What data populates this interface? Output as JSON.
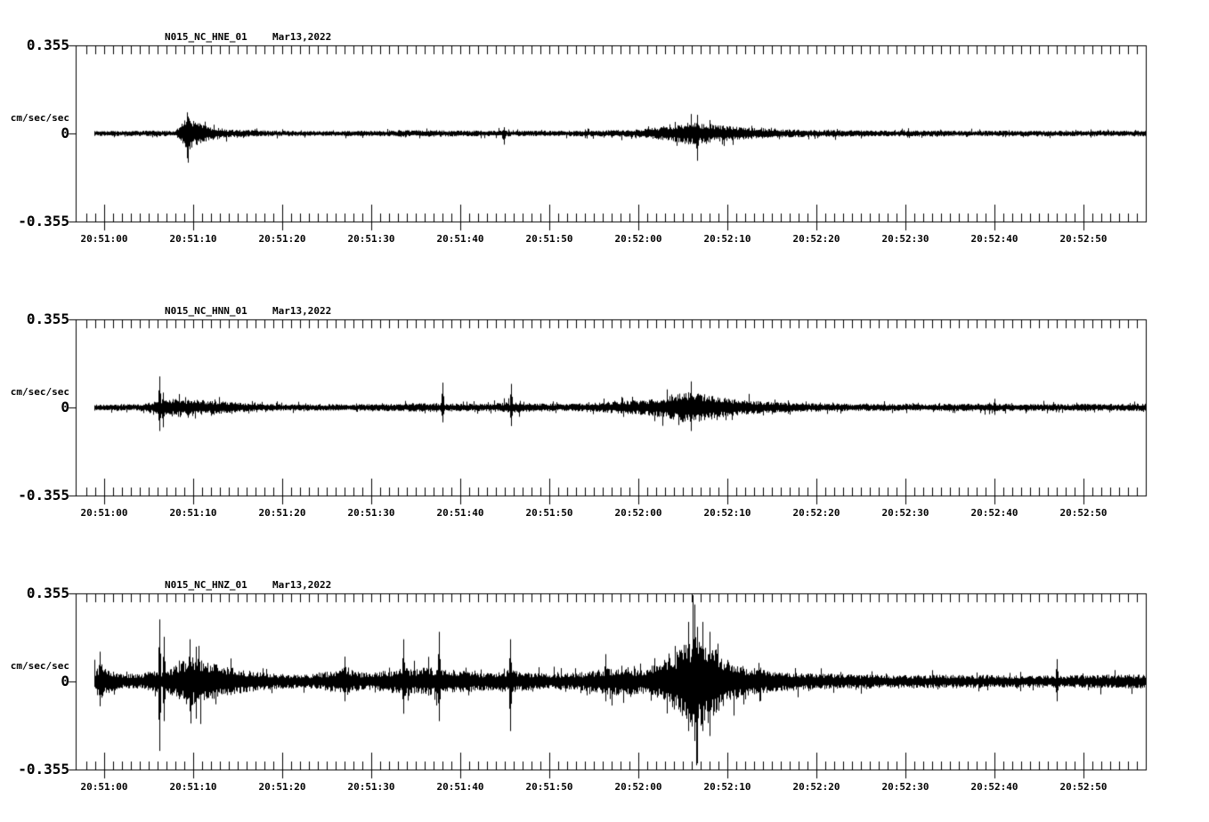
{
  "page": {
    "background": "#ffffff",
    "ink": "#000000"
  },
  "chart_data": [
    {
      "type": "line",
      "kind": "seismogram",
      "title": "N015_NC_HNE_01",
      "date": "Mar13,2022",
      "ylabel": "cm/sec/sec",
      "yticks": [
        "0.355",
        "0",
        "-0.355"
      ],
      "ylim": [
        -0.355,
        0.355
      ],
      "x_tick_labels": [
        "20:51:00",
        "20:51:10",
        "20:51:20",
        "20:51:30",
        "20:51:40",
        "20:51:50",
        "20:52:00",
        "20:52:10",
        "20:52:20",
        "20:52:30",
        "20:52:40",
        "20:52:50"
      ],
      "seconds_per_division": 10,
      "x_start_sec": -1.1,
      "x_end_sec": 117,
      "envelope": [
        [
          -1.1,
          0.01
        ],
        [
          0,
          0.01
        ],
        [
          3,
          0.011
        ],
        [
          8,
          0.012
        ],
        [
          8.6,
          0.04
        ],
        [
          9.4,
          0.07
        ],
        [
          10.5,
          0.045
        ],
        [
          12,
          0.028
        ],
        [
          14,
          0.016
        ],
        [
          18,
          0.012
        ],
        [
          24,
          0.01
        ],
        [
          30,
          0.011
        ],
        [
          36,
          0.014
        ],
        [
          40,
          0.012
        ],
        [
          48,
          0.011
        ],
        [
          55,
          0.012
        ],
        [
          60,
          0.016
        ],
        [
          62,
          0.024
        ],
        [
          64,
          0.034
        ],
        [
          65.5,
          0.045
        ],
        [
          67,
          0.042
        ],
        [
          68.5,
          0.036
        ],
        [
          70,
          0.03
        ],
        [
          72,
          0.024
        ],
        [
          75,
          0.018
        ],
        [
          80,
          0.014
        ],
        [
          88,
          0.012
        ],
        [
          100,
          0.011
        ],
        [
          110,
          0.011
        ],
        [
          117,
          0.012
        ]
      ],
      "spikes": [
        [
          9.3,
          0.085,
          0.1
        ],
        [
          44.9,
          0.025,
          0.045
        ],
        [
          66.6,
          0.075,
          0.11
        ]
      ]
    },
    {
      "type": "line",
      "kind": "seismogram",
      "title": "N015_NC_HNN_01",
      "date": "Mar13,2022",
      "ylabel": "cm/sec/sec",
      "yticks": [
        "0.355",
        "0",
        "-0.355"
      ],
      "ylim": [
        -0.355,
        0.355
      ],
      "x_tick_labels": [
        "20:51:00",
        "20:51:10",
        "20:51:20",
        "20:51:30",
        "20:51:40",
        "20:51:50",
        "20:52:00",
        "20:52:10",
        "20:52:20",
        "20:52:30",
        "20:52:40",
        "20:52:50"
      ],
      "seconds_per_division": 10,
      "x_start_sec": -1.1,
      "x_end_sec": 117,
      "envelope": [
        [
          -1.1,
          0.013
        ],
        [
          0,
          0.013
        ],
        [
          4,
          0.013
        ],
        [
          5.8,
          0.025
        ],
        [
          6.5,
          0.03
        ],
        [
          8,
          0.035
        ],
        [
          9.5,
          0.032
        ],
        [
          11,
          0.03
        ],
        [
          13,
          0.026
        ],
        [
          15,
          0.02
        ],
        [
          18,
          0.015
        ],
        [
          22,
          0.013
        ],
        [
          28,
          0.013
        ],
        [
          34,
          0.016
        ],
        [
          37,
          0.02
        ],
        [
          39,
          0.016
        ],
        [
          43,
          0.015
        ],
        [
          45.5,
          0.022
        ],
        [
          47,
          0.018
        ],
        [
          52,
          0.015
        ],
        [
          56,
          0.02
        ],
        [
          58,
          0.026
        ],
        [
          60,
          0.03
        ],
        [
          62,
          0.036
        ],
        [
          64,
          0.05
        ],
        [
          65.5,
          0.065
        ],
        [
          66.5,
          0.06
        ],
        [
          68,
          0.05
        ],
        [
          69.5,
          0.04
        ],
        [
          71,
          0.032
        ],
        [
          74,
          0.024
        ],
        [
          78,
          0.018
        ],
        [
          84,
          0.015
        ],
        [
          92,
          0.014
        ],
        [
          98,
          0.016
        ],
        [
          104,
          0.014
        ],
        [
          112,
          0.014
        ],
        [
          117,
          0.015
        ]
      ],
      "spikes": [
        [
          6.2,
          0.125,
          0.095
        ],
        [
          6.6,
          0.06,
          0.08
        ],
        [
          38.0,
          0.1,
          0.06
        ],
        [
          45.7,
          0.095,
          0.075
        ],
        [
          65.9,
          0.105,
          0.095
        ],
        [
          100.0,
          0.035,
          0.03
        ]
      ]
    },
    {
      "type": "line",
      "kind": "seismogram",
      "title": "N015_NC_HNZ_01",
      "date": "Mar13,2022",
      "ylabel": "cm/sec/sec",
      "yticks": [
        "0.355",
        "0",
        "-0.355"
      ],
      "ylim": [
        -0.355,
        0.355
      ],
      "x_tick_labels": [
        "20:51:00",
        "20:51:10",
        "20:51:20",
        "20:51:30",
        "20:51:40",
        "20:51:50",
        "20:52:00",
        "20:52:10",
        "20:52:20",
        "20:52:30",
        "20:52:40",
        "20:52:50"
      ],
      "seconds_per_division": 10,
      "x_start_sec": -1.1,
      "x_end_sec": 117,
      "envelope": [
        [
          -1.1,
          0.05
        ],
        [
          -0.3,
          0.07
        ],
        [
          0.5,
          0.05
        ],
        [
          2,
          0.032
        ],
        [
          4,
          0.03
        ],
        [
          5.8,
          0.045
        ],
        [
          7,
          0.045
        ],
        [
          8.3,
          0.07
        ],
        [
          9.3,
          0.1
        ],
        [
          10.5,
          0.1
        ],
        [
          11.5,
          0.085
        ],
        [
          13,
          0.065
        ],
        [
          14.5,
          0.055
        ],
        [
          16,
          0.045
        ],
        [
          18,
          0.035
        ],
        [
          20,
          0.03
        ],
        [
          23,
          0.028
        ],
        [
          26,
          0.045
        ],
        [
          27,
          0.06
        ],
        [
          28,
          0.04
        ],
        [
          30,
          0.035
        ],
        [
          32,
          0.045
        ],
        [
          33.5,
          0.06
        ],
        [
          35,
          0.05
        ],
        [
          36.5,
          0.06
        ],
        [
          38,
          0.055
        ],
        [
          40,
          0.045
        ],
        [
          42,
          0.038
        ],
        [
          44,
          0.035
        ],
        [
          45.5,
          0.05
        ],
        [
          47,
          0.038
        ],
        [
          50,
          0.032
        ],
        [
          53,
          0.035
        ],
        [
          55,
          0.045
        ],
        [
          57,
          0.055
        ],
        [
          58.5,
          0.06
        ],
        [
          60,
          0.05
        ],
        [
          61.5,
          0.055
        ],
        [
          63,
          0.08
        ],
        [
          64,
          0.11
        ],
        [
          65,
          0.15
        ],
        [
          66,
          0.185
        ],
        [
          66.8,
          0.195
        ],
        [
          67.5,
          0.17
        ],
        [
          68.5,
          0.14
        ],
        [
          69.5,
          0.105
        ],
        [
          70.5,
          0.08
        ],
        [
          72,
          0.06
        ],
        [
          74,
          0.048
        ],
        [
          76,
          0.04
        ],
        [
          80,
          0.033
        ],
        [
          85,
          0.028
        ],
        [
          90,
          0.026
        ],
        [
          95,
          0.028
        ],
        [
          100,
          0.026
        ],
        [
          105,
          0.025
        ],
        [
          110,
          0.026
        ],
        [
          114,
          0.028
        ],
        [
          117,
          0.028
        ]
      ],
      "spikes": [
        [
          -0.5,
          0.12,
          0.1
        ],
        [
          6.2,
          0.25,
          0.28
        ],
        [
          6.7,
          0.18,
          0.16
        ],
        [
          9.6,
          0.17,
          0.12
        ],
        [
          10.3,
          0.14,
          0.15
        ],
        [
          27.0,
          0.1,
          0.08
        ],
        [
          33.6,
          0.17,
          0.13
        ],
        [
          37.6,
          0.2,
          0.16
        ],
        [
          45.6,
          0.17,
          0.2
        ],
        [
          56.3,
          0.11,
          0.08
        ],
        [
          65.6,
          0.24,
          0.2
        ],
        [
          66.3,
          0.31,
          0.24
        ],
        [
          66.6,
          0.22,
          0.33
        ],
        [
          67.2,
          0.24,
          0.2
        ],
        [
          68.0,
          0.2,
          0.22
        ],
        [
          107.0,
          0.09,
          0.08
        ]
      ]
    }
  ]
}
